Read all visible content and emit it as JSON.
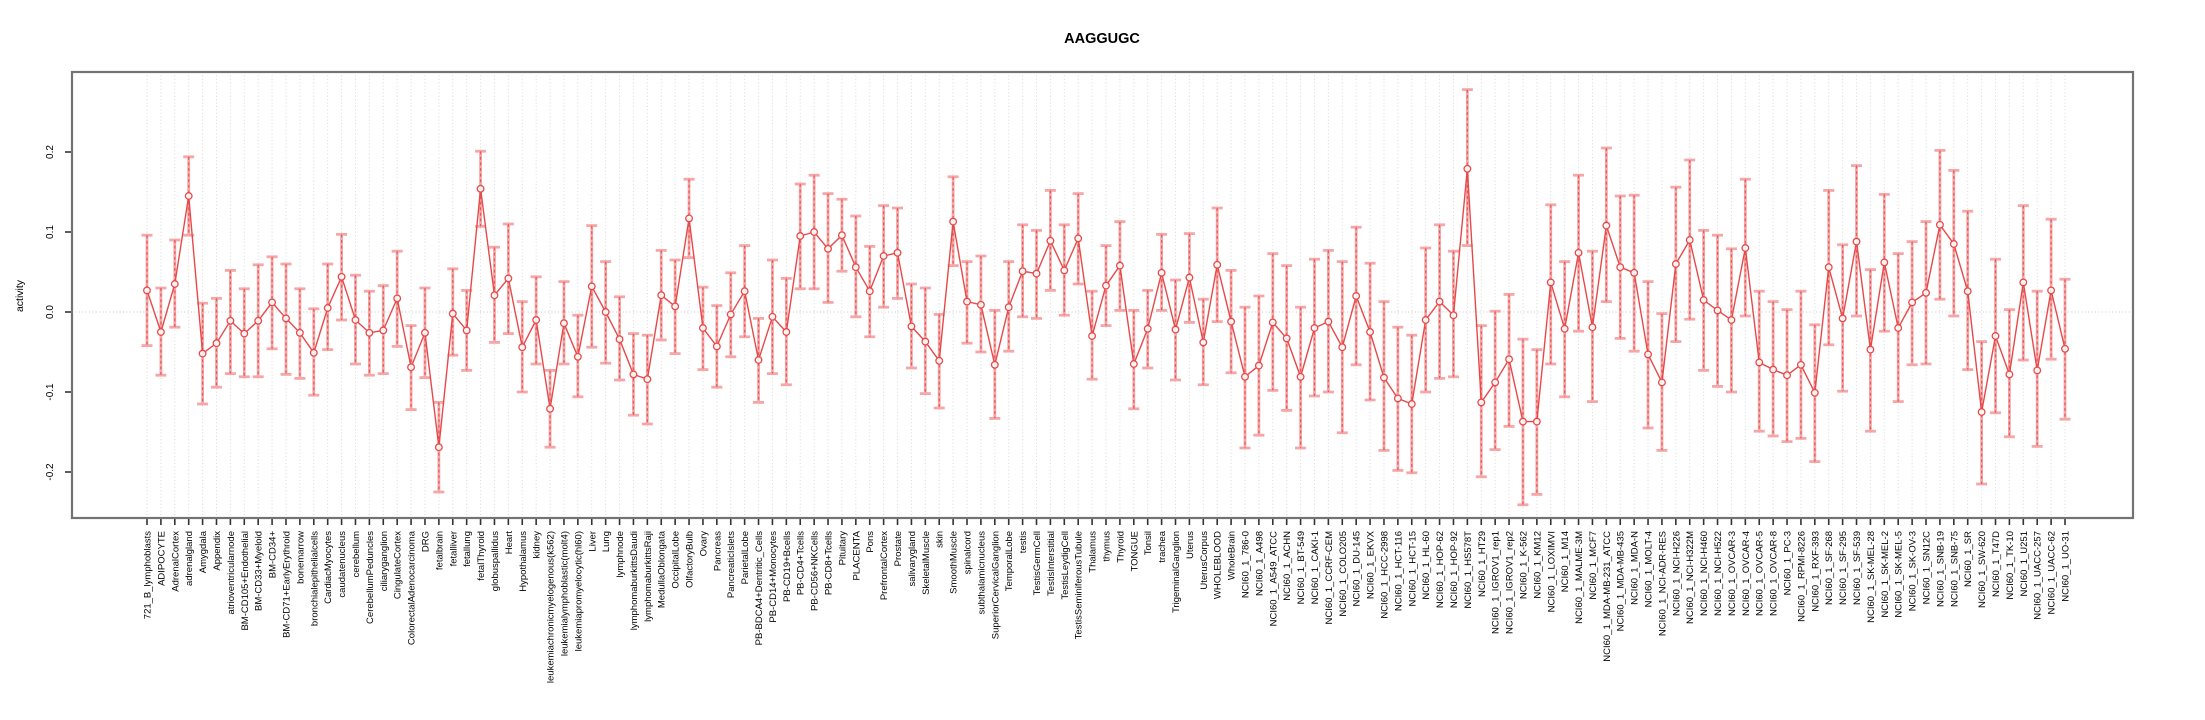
{
  "title": "AAGGUGC",
  "chart_data": {
    "type": "line",
    "title": "AAGGUGC",
    "xlabel": "",
    "ylabel": "activity",
    "ylim": [
      -0.26,
      0.3
    ],
    "yticks": [
      -0.2,
      -0.1,
      0.0,
      0.1,
      0.2
    ],
    "grid": "vertical-dashed-per-category",
    "zero_line": true,
    "legend": "none",
    "marker": "open-circle",
    "error_bars": true,
    "colors": {
      "line": "#e84848",
      "point": "#e84848",
      "error_bar": "#f6a6a6",
      "error_bar_dash": "#e25b5b",
      "grid": "#d9d9d9",
      "zero_line": "#c6c6c6",
      "border": "#737373",
      "tick": "#333333",
      "text": "#000000"
    },
    "categories": [
      "721_B_lymphoblasts",
      "ADIPOCYTE",
      "AdrenalCortex",
      "adrenalgland",
      "Amygdala",
      "Appendix",
      "atrioventricularnode",
      "BM-CD105+Endothelial",
      "BM-CD33+Myeloid",
      "BM-CD34+",
      "BM-CD71+EarlyErythroid",
      "bonemarrow",
      "bronchialepithelialcells",
      "CardiacMyocytes",
      "caudatenucleus",
      "cerebellum",
      "CerebellumPeduncles",
      "ciliaryganglion",
      "CingulateCortex",
      "ColorectalAdenocarcinoma",
      "DRG",
      "fetalbrain",
      "fetalliver",
      "fetallung",
      "fetalThyroid",
      "globuspallidus",
      "Heart",
      "Hypothalamus",
      "kidney",
      "leukemiachronicmyelogenous(k562)",
      "leukemialymphoblastic(molt4)",
      "leukemiapromyelocytic(hl60)",
      "Liver",
      "Lung",
      "lymphnode",
      "lymphomaburkittsDaudi",
      "lymphomaburkittsRaji",
      "MedullaOblongata",
      "OccipitalLobe",
      "OlfactoryBulb",
      "Ovary",
      "Pancreas",
      "PancreaticIslets",
      "ParietalLobe",
      "PB-BDCA4+Dentritic_Cells",
      "PB-CD14+Monocytes",
      "PB-CD19+Bcells",
      "PB-CD4+Tcells",
      "PB-CD56+NKCells",
      "PB-CD8+Tcells",
      "Pituitary",
      "PLACENTA",
      "Pons",
      "PrefrontalCortex",
      "Prostate",
      "salivarygland",
      "SkeletalMuscle",
      "skin",
      "SmoothMuscle",
      "spinalcord",
      "subthalamicnucleus",
      "SuperiorCervicalGanglion",
      "TemporalLobe",
      "testis",
      "TestisGermCell",
      "TestisInterstitial",
      "TestisLeydigCell",
      "TestisSeminiferousTubule",
      "Thalamus",
      "thymus",
      "Thyroid",
      "TONGUE",
      "Tonsil",
      "trachea",
      "TrigeminalGanglion",
      "Uterus",
      "UterusCorpus",
      "WHOLEBLOOD",
      "WholeBrain",
      "NCI60_1_786-0",
      "NCI60_1_A498",
      "NCI60_1_A549_ATCC",
      "NCI60_1_ACHN",
      "NCI60_1_BT-549",
      "NCI60_1_CAKI-1",
      "NCI60_1_CCRF-CEM",
      "NCI60_1_COLO205",
      "NCI60_1_DU-145",
      "NCI60_1_EKVX",
      "NCI60_1_HCC-2998",
      "NCI60_1_HCT-116",
      "NCI60_1_HCT-15",
      "NCI60_1_HL-60",
      "NCI60_1_HOP-62",
      "NCI60_1_HOP-92",
      "NCI60_1_HS578T",
      "NCI60_1_HT29",
      "NCI60_1_IGROV1_rep1",
      "NCI60_1_IGROV1_rep2",
      "NCI60_1_K-562",
      "NCI60_1_KM12",
      "NCI60_1_LOXIMVI",
      "NCI60_1_M14",
      "NCI60_1_MALME-3M",
      "NCI60_1_MCF7",
      "NCI60_1_MDA-MB-231_ATCC",
      "NCI60_1_MDA-MB-435",
      "NCI60_1_MDA-N",
      "NCI60_1_MOLT-4",
      "NCI60_1_NCI-ADR-RES",
      "NCI60_1_NCI-H226",
      "NCI60_1_NCI-H322M",
      "NCI60_1_NCI-H460",
      "NCI60_1_NCI-H522",
      "NCI60_1_OVCAR-3",
      "NCI60_1_OVCAR-4",
      "NCI60_1_OVCAR-5",
      "NCI60_1_OVCAR-8",
      "NCI60_1_PC-3",
      "NCI60_1_RPMI-8226",
      "NCI60_1_RXF-393",
      "NCI60_1_SF-268",
      "NCI60_1_SF-295",
      "NCI60_1_SF-539",
      "NCI60_1_SK-MEL-28",
      "NCI60_1_SK-MEL-2",
      "NCI60_1_SK-MEL-5",
      "NCI60_1_SK-OV-3",
      "NCI60_1_SN12C",
      "NCI60_1_SNB-19",
      "NCI60_1_SNB-75",
      "NCI60_1_SR",
      "NCI60_1_SW-620",
      "NCI60_1_T47D",
      "NCI60_1_TK-10",
      "NCI60_1_U251",
      "NCI60_1_UACC-257",
      "NCI60_1_UACC-62",
      "NCI60_1_UO-31"
    ],
    "series": [
      {
        "name": "activity",
        "values": [
          0.027,
          -0.025,
          0.035,
          0.145,
          -0.052,
          -0.039,
          -0.011,
          -0.027,
          -0.011,
          0.012,
          -0.008,
          -0.026,
          -0.051,
          0.005,
          0.044,
          -0.01,
          -0.026,
          -0.023,
          0.017,
          -0.069,
          -0.026,
          -0.169,
          -0.002,
          -0.023,
          0.154,
          0.021,
          0.042,
          -0.044,
          -0.01,
          -0.121,
          -0.014,
          -0.056,
          0.032,
          0.0,
          -0.034,
          -0.078,
          -0.084,
          0.021,
          0.007,
          0.117,
          -0.02,
          -0.043,
          -0.003,
          0.026,
          -0.06,
          -0.006,
          -0.025,
          0.095,
          0.1,
          0.079,
          0.096,
          0.056,
          0.026,
          0.07,
          0.074,
          -0.018,
          -0.037,
          -0.061,
          0.113,
          0.013,
          0.009,
          -0.066,
          0.006,
          0.051,
          0.048,
          0.089,
          0.052,
          0.092,
          -0.03,
          0.033,
          0.058,
          -0.065,
          -0.021,
          0.049,
          -0.022,
          0.043,
          -0.038,
          0.059,
          -0.012,
          -0.081,
          -0.067,
          -0.013,
          -0.033,
          -0.081,
          -0.02,
          -0.012,
          -0.044,
          0.02,
          -0.025,
          -0.082,
          -0.108,
          -0.115,
          -0.01,
          0.013,
          -0.004,
          0.179,
          -0.113,
          -0.088,
          -0.059,
          -0.137,
          -0.137,
          0.037,
          -0.021,
          0.074,
          -0.019,
          0.108,
          0.056,
          0.049,
          -0.053,
          -0.088,
          0.06,
          0.09,
          0.015,
          0.002,
          -0.01,
          0.08,
          -0.063,
          -0.072,
          -0.079,
          -0.066,
          -0.101,
          0.056,
          -0.008,
          0.088,
          -0.047,
          0.062,
          -0.02,
          0.012,
          0.024,
          0.109,
          0.085,
          0.026,
          -0.125,
          -0.03,
          -0.078,
          0.037,
          -0.073,
          0.027,
          -0.046
        ]
      }
    ],
    "err_hi": [
      0.096,
      0.03,
      0.09,
      0.194,
      0.011,
      0.017,
      0.052,
      0.029,
      0.059,
      0.069,
      0.06,
      0.029,
      0.004,
      0.06,
      0.097,
      0.046,
      0.026,
      0.033,
      0.076,
      -0.017,
      0.03,
      -0.113,
      0.054,
      0.027,
      0.201,
      0.081,
      0.11,
      0.013,
      0.044,
      -0.073,
      0.038,
      -0.004,
      0.108,
      0.063,
      0.019,
      -0.027,
      -0.029,
      0.077,
      0.065,
      0.166,
      0.031,
      0.008,
      0.049,
      0.083,
      -0.008,
      0.065,
      0.042,
      0.16,
      0.171,
      0.148,
      0.141,
      0.12,
      0.082,
      0.133,
      0.13,
      0.035,
      0.03,
      -0.003,
      0.169,
      0.063,
      0.07,
      0.002,
      0.063,
      0.109,
      0.102,
      0.152,
      0.109,
      0.148,
      0.026,
      0.083,
      0.113,
      0.002,
      0.027,
      0.097,
      0.04,
      0.098,
      0.016,
      0.13,
      0.052,
      0.006,
      0.02,
      0.073,
      0.058,
      0.006,
      0.066,
      0.077,
      0.063,
      0.106,
      0.061,
      0.013,
      -0.019,
      -0.029,
      0.08,
      0.109,
      0.076,
      0.278,
      -0.017,
      0.001,
      0.022,
      -0.034,
      -0.047,
      0.134,
      0.063,
      0.171,
      0.076,
      0.205,
      0.145,
      0.146,
      0.038,
      -0.002,
      0.156,
      0.19,
      0.102,
      0.096,
      0.079,
      0.166,
      0.026,
      0.013,
      0.003,
      0.026,
      -0.016,
      0.152,
      0.084,
      0.183,
      0.053,
      0.147,
      0.073,
      0.088,
      0.113,
      0.202,
      0.177,
      0.126,
      -0.037,
      0.066,
      0.003,
      0.133,
      0.026,
      0.116,
      0.041
    ],
    "err_lo": [
      -0.042,
      -0.079,
      -0.019,
      0.096,
      -0.115,
      -0.094,
      -0.077,
      -0.081,
      -0.081,
      -0.046,
      -0.078,
      -0.083,
      -0.104,
      -0.047,
      -0.01,
      -0.065,
      -0.079,
      -0.077,
      -0.043,
      -0.122,
      -0.082,
      -0.225,
      -0.054,
      -0.073,
      0.107,
      -0.038,
      -0.027,
      -0.1,
      -0.065,
      -0.169,
      -0.065,
      -0.106,
      -0.044,
      -0.064,
      -0.085,
      -0.129,
      -0.14,
      -0.035,
      -0.052,
      0.068,
      -0.072,
      -0.094,
      -0.056,
      -0.031,
      -0.113,
      -0.077,
      -0.091,
      0.029,
      0.029,
      0.012,
      0.051,
      -0.006,
      -0.031,
      0.006,
      0.017,
      -0.07,
      -0.102,
      -0.12,
      0.058,
      -0.039,
      -0.05,
      -0.133,
      -0.049,
      -0.006,
      -0.008,
      0.027,
      -0.004,
      0.035,
      -0.084,
      -0.017,
      0.002,
      -0.121,
      -0.07,
      0.002,
      -0.085,
      -0.013,
      -0.091,
      -0.012,
      -0.076,
      -0.17,
      -0.154,
      -0.098,
      -0.123,
      -0.17,
      -0.105,
      -0.1,
      -0.151,
      -0.066,
      -0.11,
      -0.173,
      -0.198,
      -0.201,
      -0.1,
      -0.083,
      -0.081,
      0.083,
      -0.206,
      -0.172,
      -0.143,
      -0.241,
      -0.228,
      -0.065,
      -0.106,
      -0.024,
      -0.112,
      0.013,
      -0.033,
      -0.049,
      -0.145,
      -0.173,
      -0.037,
      -0.009,
      -0.073,
      -0.093,
      -0.1,
      -0.005,
      -0.149,
      -0.155,
      -0.162,
      -0.158,
      -0.187,
      -0.041,
      -0.099,
      -0.005,
      -0.149,
      -0.024,
      -0.112,
      -0.066,
      -0.065,
      0.016,
      -0.005,
      -0.072,
      -0.215,
      -0.126,
      -0.156,
      -0.06,
      -0.168,
      -0.059,
      -0.134
    ]
  }
}
